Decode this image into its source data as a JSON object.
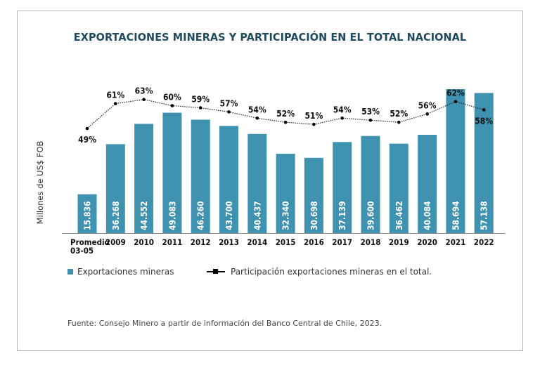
{
  "chart_data": {
    "type": "bar",
    "title": "EXPORTACIONES MINERAS Y PARTICIPACIÓN EN EL TOTAL NACIONAL",
    "ylabel": "Millones de US$ FOB",
    "xlabel": "",
    "categories": [
      "Promedio 03-05",
      "2009",
      "2010",
      "2011",
      "2012",
      "2013",
      "2014",
      "2015",
      "2016",
      "2017",
      "2018",
      "2019",
      "2020",
      "2021",
      "2022"
    ],
    "series": [
      {
        "name": "Exportaciones mineras",
        "type": "bar",
        "color": "#3f93b1",
        "values": [
          15836,
          36268,
          44552,
          49083,
          46260,
          43700,
          40437,
          32340,
          30698,
          37139,
          39600,
          36462,
          40084,
          58694,
          57138
        ],
        "labels": [
          "15.836",
          "36.268",
          "44.552",
          "49.083",
          "46.260",
          "43.700",
          "40.437",
          "32.340",
          "30.698",
          "37.139",
          "39.600",
          "36.462",
          "40.084",
          "58.694",
          "57.138"
        ]
      },
      {
        "name": "Participación exportaciones mineras en el total.",
        "type": "line",
        "color": "#000000",
        "values": [
          49,
          61,
          63,
          60,
          59,
          57,
          54,
          52,
          51,
          54,
          53,
          52,
          56,
          62,
          58
        ],
        "labels": [
          "49%",
          "61%",
          "63%",
          "60%",
          "59%",
          "57%",
          "54%",
          "52%",
          "51%",
          "54%",
          "53%",
          "52%",
          "56%",
          "62%",
          "58%"
        ]
      }
    ],
    "grid": false,
    "legend": "bottom",
    "source": "Fuente: Consejo Minero a partir de información del Banco Central de Chile, 2023."
  }
}
